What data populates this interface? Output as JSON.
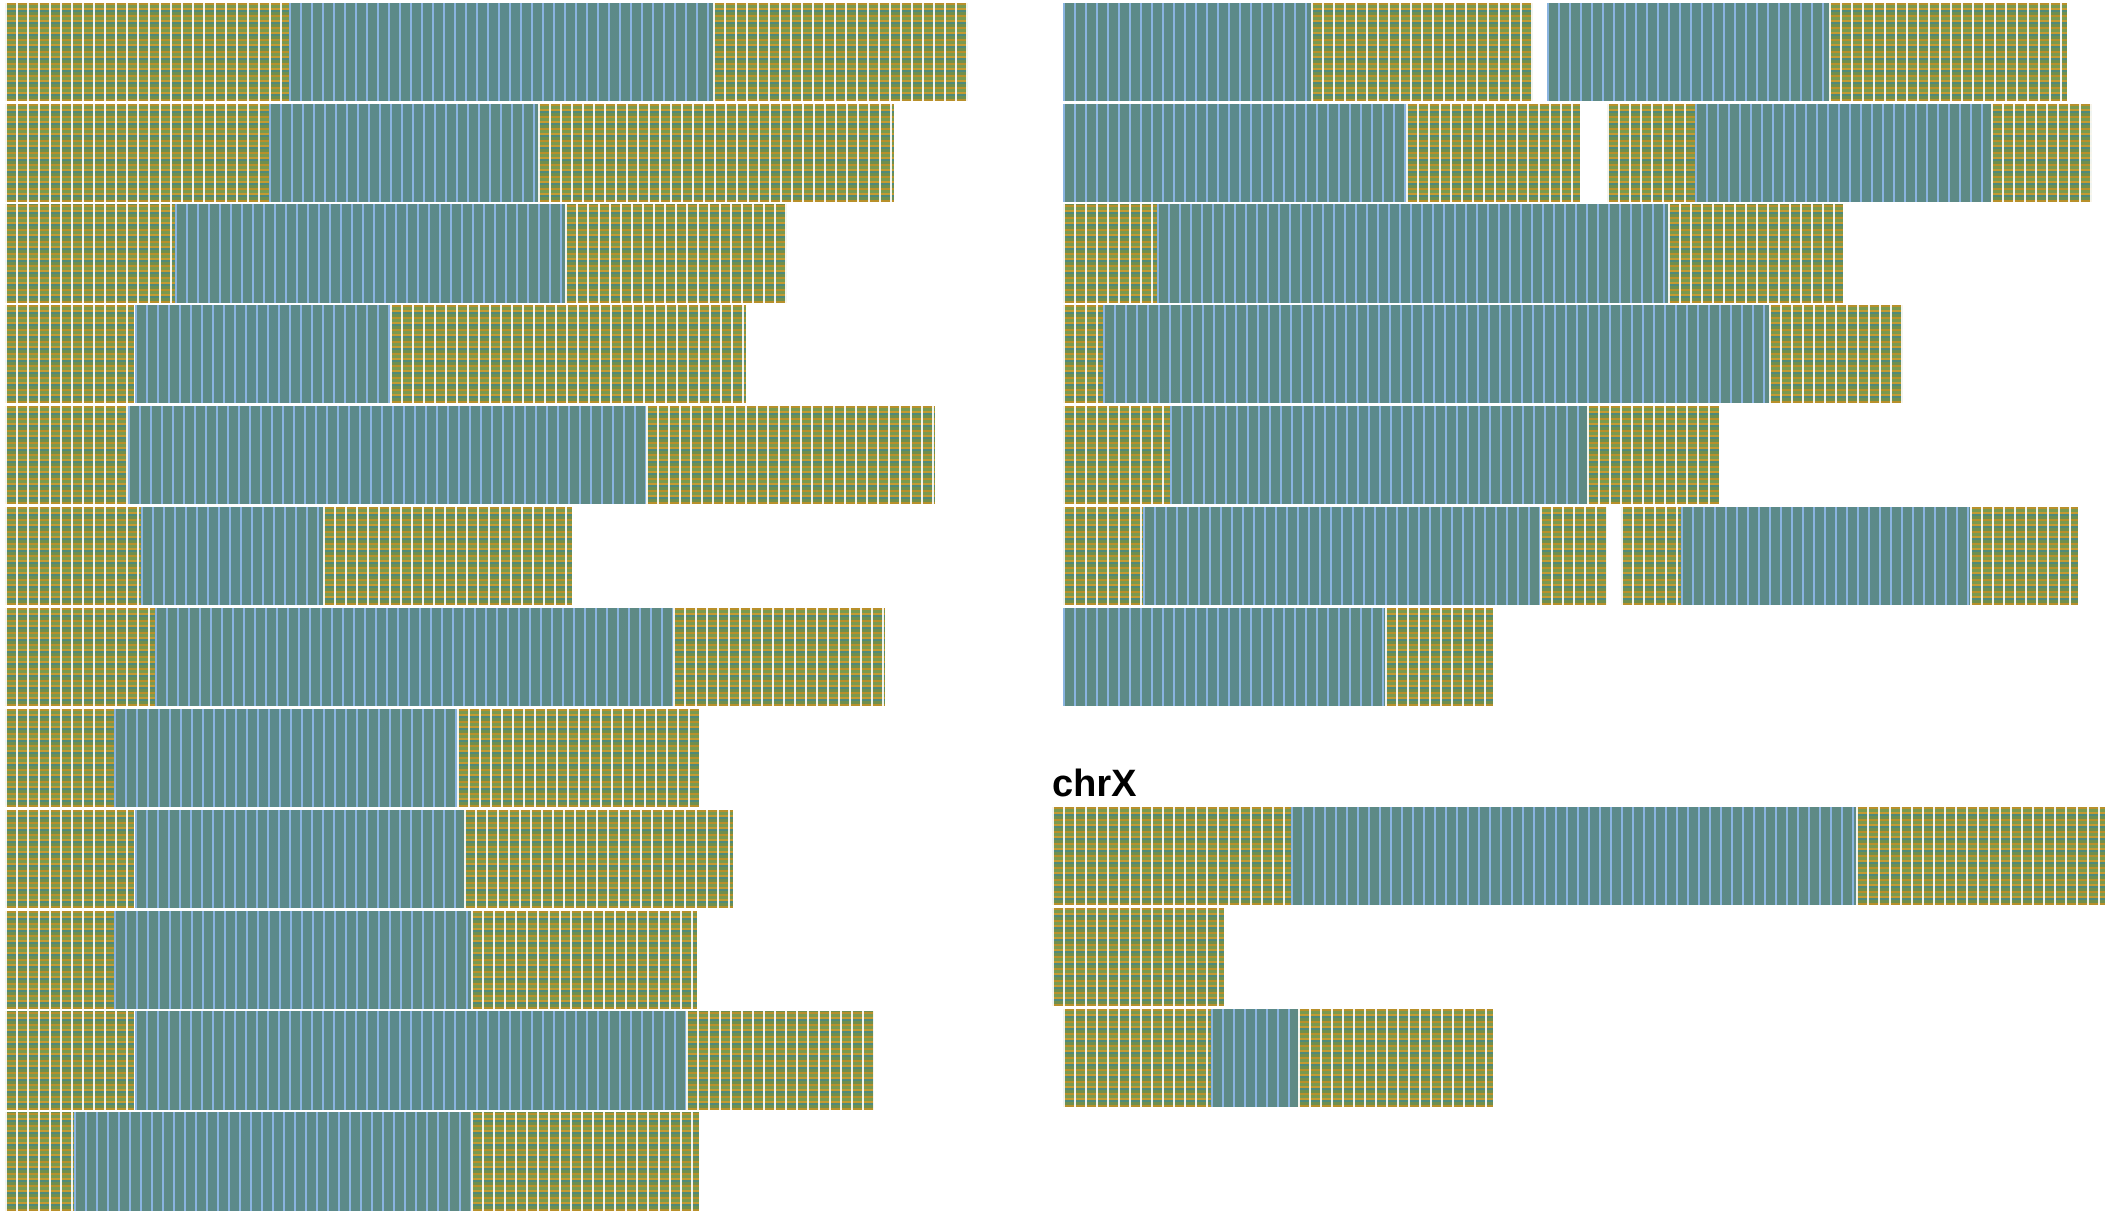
{
  "label": "chrX"
}
